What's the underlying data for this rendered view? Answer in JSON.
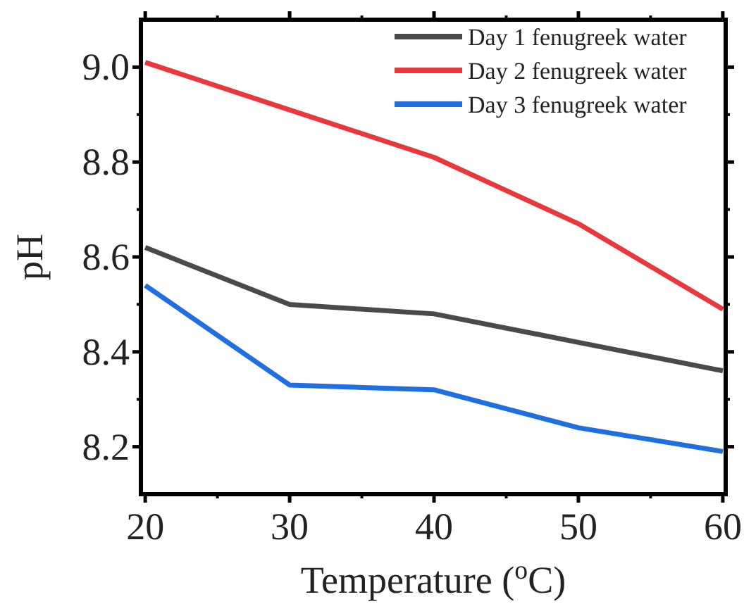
{
  "chart_data": {
    "type": "line",
    "xlabel": "Temperature ($^{o}$C)",
    "ylabel": "pH",
    "x": [
      20,
      30,
      40,
      50,
      60
    ],
    "xlim": [
      19.7,
      60.2
    ],
    "xticks": [
      20,
      30,
      40,
      50,
      60
    ],
    "ylim": [
      8.1,
      9.1
    ],
    "yticks": [
      {
        "value": 8.2,
        "label": "8.2"
      },
      {
        "value": 8.4,
        "label": "8.4"
      },
      {
        "value": 8.6,
        "label": "8.6"
      },
      {
        "value": 8.8,
        "label": "8.8"
      },
      {
        "value": 9,
        "label": "9.0"
      }
    ],
    "grid": false,
    "legend": "top right",
    "marker": "none",
    "line_style": "solid",
    "series": [
      {
        "name": "Day 1 fenugreek water",
        "color": "#4a4a4a",
        "values": [
          8.62,
          8.5,
          8.48,
          8.42,
          8.36
        ]
      },
      {
        "name": "Day 2 fenugreek water",
        "color": "#e8383d",
        "values": [
          9.01,
          8.91,
          8.81,
          8.67,
          8.49
        ]
      },
      {
        "name": "Day 3 fenugreek water",
        "color": "#1f6fe0",
        "values": [
          8.54,
          8.33,
          8.32,
          8.24,
          8.19
        ]
      }
    ]
  }
}
